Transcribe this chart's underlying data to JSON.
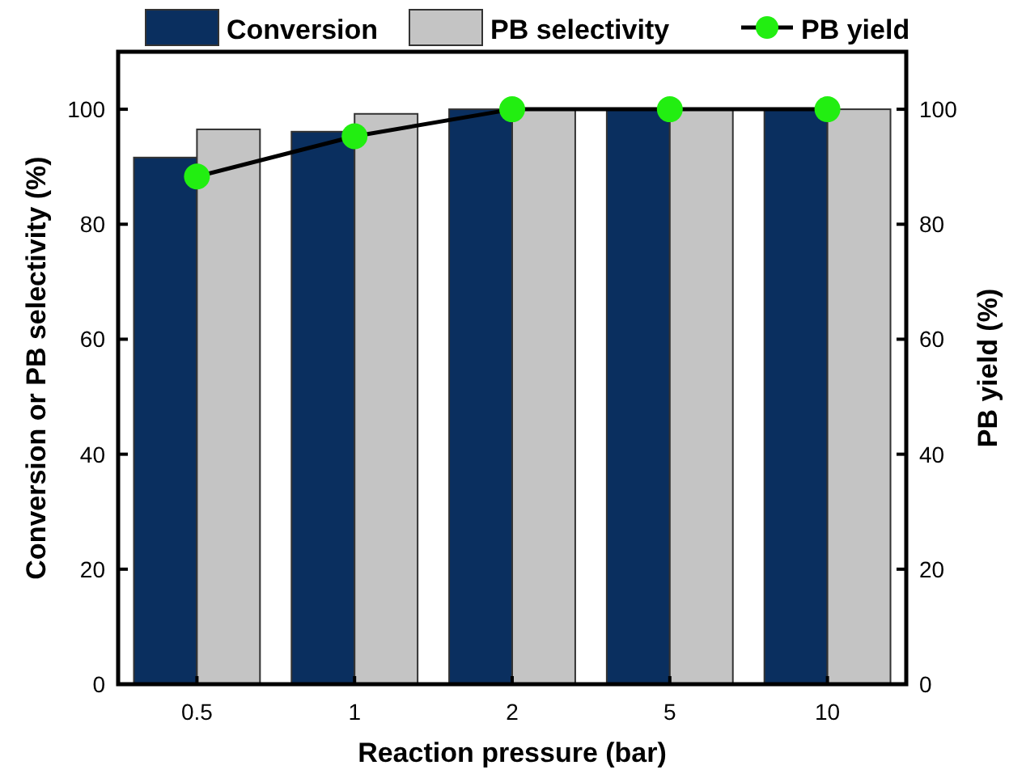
{
  "chart_data": {
    "type": "bar",
    "xlabel": "Reaction pressure (bar)",
    "ylabel": "Conversion or PB selectivity (%)",
    "y2label": "PB yield (%)",
    "categories": [
      "0.5",
      "1",
      "2",
      "5",
      "10"
    ],
    "series": [
      {
        "name": "Conversion",
        "color": "#0a2f5f",
        "values": [
          91.6,
          96.1,
          100,
          100,
          100
        ]
      },
      {
        "name": "PB selectivity",
        "color": "#c4c4c4",
        "values": [
          96.5,
          99.2,
          100,
          100,
          100
        ]
      },
      {
        "name": "PB yield",
        "type": "line",
        "axis": "y2",
        "color": "#22ee11",
        "values": [
          88.3,
          95.3,
          100,
          100,
          100
        ]
      }
    ],
    "ylim": [
      0,
      110
    ],
    "yticks": [
      0,
      20,
      40,
      60,
      80,
      100
    ],
    "y2lim": [
      0,
      110
    ],
    "y2ticks": [
      0,
      20,
      40,
      60,
      80,
      100
    ],
    "legend": "top",
    "marker": "circle",
    "line_style": "solid"
  }
}
